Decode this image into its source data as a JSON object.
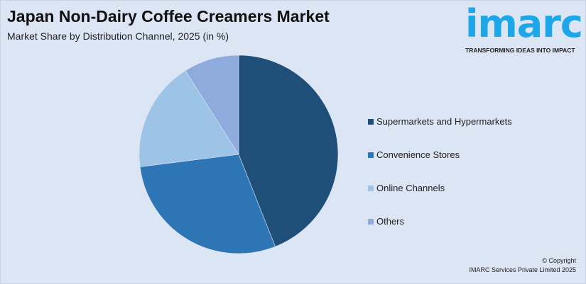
{
  "header": {
    "title": "Japan Non-Dairy Coffee Creamers Market",
    "subtitle": "Market Share by Distribution Channel, 2025 (in %)"
  },
  "logo": {
    "word": "imarc",
    "tagline": "TRANSFORMING IDEAS INTO IMPACT",
    "color": "#1ea7e8"
  },
  "chart_data": {
    "type": "pie",
    "title": "Japan Non-Dairy Coffee Creamers Market",
    "subtitle": "Market Share by Distribution Channel, 2025 (in %)",
    "categories": [
      "Supermarkets and Hypermarkets",
      "Convenience Stores",
      "Online Channels",
      "Others"
    ],
    "values": [
      44,
      29,
      18,
      9
    ],
    "colors": [
      "#1f4e79",
      "#2e75b6",
      "#9dc3e6",
      "#8faadc"
    ],
    "start_angle": "12 o'clock",
    "direction": "clockwise",
    "legend": "right"
  },
  "footer": {
    "copyright": "© Copyright",
    "company": "IMARC Services Private Limited 2025"
  }
}
